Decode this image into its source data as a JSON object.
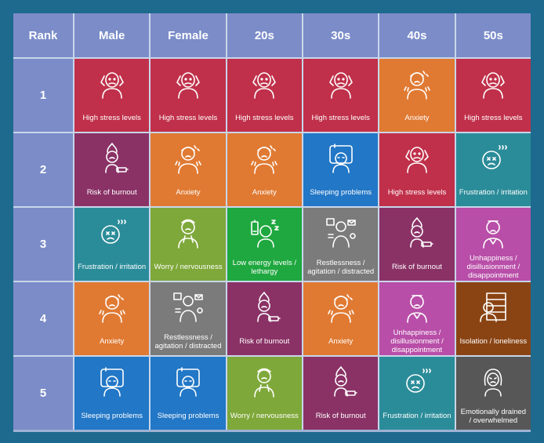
{
  "headers": [
    "Rank",
    "Male",
    "Female",
    "20s",
    "30s",
    "40s",
    "50s"
  ],
  "ranks": [
    "1",
    "2",
    "3",
    "4",
    "5"
  ],
  "colors": {
    "high_stress": "#c0304a",
    "anxiety": "#e07a33",
    "burnout": "#8a3266",
    "sleeping": "#2277c6",
    "frustration": "#2b8c99",
    "worry": "#7fa83a",
    "restless": "#7b7b7b",
    "low_energy": "#1fa83f",
    "unhappiness": "#b84ea8",
    "isolation": "#8a4414",
    "emotional": "#575757"
  },
  "rows": [
    [
      {
        "label": "High stress levels",
        "icon": "stressed-person-icon",
        "color": "#c0304a"
      },
      {
        "label": "High stress levels",
        "icon": "stressed-person-icon",
        "color": "#c0304a"
      },
      {
        "label": "High stress levels",
        "icon": "stressed-person-icon",
        "color": "#c0304a"
      },
      {
        "label": "High stress levels",
        "icon": "stressed-person-icon",
        "color": "#c0304a"
      },
      {
        "label": "Anxiety",
        "icon": "anxious-person-icon",
        "color": "#e07a33"
      },
      {
        "label": "High stress levels",
        "icon": "stressed-person-icon",
        "color": "#c0304a"
      }
    ],
    [
      {
        "label": "Risk of burnout",
        "icon": "burnout-icon",
        "color": "#8a3266"
      },
      {
        "label": "Anxiety",
        "icon": "anxious-person-icon",
        "color": "#e07a33"
      },
      {
        "label": "Anxiety",
        "icon": "anxious-person-icon",
        "color": "#e07a33"
      },
      {
        "label": "Sleeping problems",
        "icon": "sleeping-problems-icon",
        "color": "#2277c6"
      },
      {
        "label": "High stress levels",
        "icon": "stressed-person-icon",
        "color": "#c0304a"
      },
      {
        "label": "Frustration / irritation",
        "icon": "frustrated-face-icon",
        "color": "#2b8c99"
      }
    ],
    [
      {
        "label": "Frustration / irritation",
        "icon": "frustrated-face-icon",
        "color": "#2b8c99"
      },
      {
        "label": "Worry / nervousness",
        "icon": "worried-person-icon",
        "color": "#7fa83a"
      },
      {
        "label": "Low energy levels / lethargy",
        "icon": "low-energy-icon",
        "color": "#1fa83f"
      },
      {
        "label": "Restlessness / agitation / distracted",
        "icon": "restless-person-icon",
        "color": "#7b7b7b"
      },
      {
        "label": "Risk of burnout",
        "icon": "burnout-icon",
        "color": "#8a3266"
      },
      {
        "label": "Unhappiness / disillusionment / disappointment",
        "icon": "unhappy-person-icon",
        "color": "#b84ea8"
      }
    ],
    [
      {
        "label": "Anxiety",
        "icon": "anxious-person-icon",
        "color": "#e07a33"
      },
      {
        "label": "Restlessness / agitation / distracted",
        "icon": "restless-person-icon",
        "color": "#7b7b7b"
      },
      {
        "label": "Risk of burnout",
        "icon": "burnout-icon",
        "color": "#8a3266"
      },
      {
        "label": "Anxiety",
        "icon": "anxious-person-icon",
        "color": "#e07a33"
      },
      {
        "label": "Unhappiness / disillusionment / disappointment",
        "icon": "unhappy-person-icon",
        "color": "#b84ea8"
      },
      {
        "label": "Isolation / loneliness",
        "icon": "isolation-icon",
        "color": "#8a4414"
      }
    ],
    [
      {
        "label": "Sleeping problems",
        "icon": "sleeping-problems-icon",
        "color": "#2277c6"
      },
      {
        "label": "Sleeping problems",
        "icon": "sleeping-problems-icon",
        "color": "#2277c6"
      },
      {
        "label": "Worry / nervousness",
        "icon": "worried-person-icon",
        "color": "#7fa83a"
      },
      {
        "label": "Risk of burnout",
        "icon": "burnout-icon",
        "color": "#8a3266"
      },
      {
        "label": "Frustration / irritation",
        "icon": "frustrated-face-icon",
        "color": "#2b8c99"
      },
      {
        "label": "Emotionally drained / overwhelmed",
        "icon": "drained-person-icon",
        "color": "#575757"
      }
    ]
  ]
}
